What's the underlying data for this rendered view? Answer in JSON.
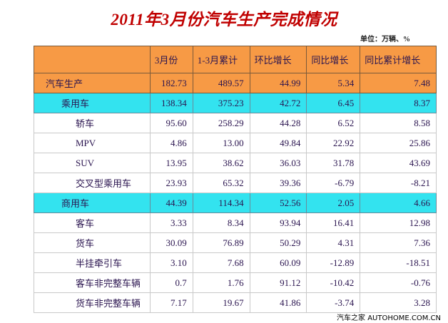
{
  "header": {
    "title": "2011年3月份汽车生产完成情况",
    "unit": "单位：万辆、%"
  },
  "table": {
    "columns": [
      "",
      "3月份",
      "1-3月累计",
      "环比增长",
      "同比增长",
      "同比累计增长"
    ],
    "rows": [
      [
        "汽车生产",
        "182.73",
        "489.57",
        "44.99",
        "5.34",
        "7.48"
      ],
      [
        "乘用车",
        "138.34",
        "375.23",
        "42.72",
        "6.45",
        "8.37"
      ],
      [
        "轿车",
        "95.60",
        "258.29",
        "44.28",
        "6.52",
        "8.58"
      ],
      [
        "MPV",
        "4.86",
        "13.00",
        "49.84",
        "22.92",
        "25.86"
      ],
      [
        "SUV",
        "13.95",
        "38.62",
        "36.03",
        "31.78",
        "43.69"
      ],
      [
        "交叉型乘用车",
        "23.93",
        "65.32",
        "39.36",
        "-6.79",
        "-8.21"
      ],
      [
        "商用车",
        "44.39",
        "114.34",
        "52.56",
        "2.05",
        "4.66"
      ],
      [
        "客车",
        "3.33",
        "8.34",
        "93.94",
        "16.41",
        "12.98"
      ],
      [
        "货车",
        "30.09",
        "76.89",
        "50.29",
        "4.31",
        "7.36"
      ],
      [
        "半挂牵引车",
        "3.10",
        "7.68",
        "60.09",
        "-12.89",
        "-18.51"
      ],
      [
        "客车非完整车辆",
        "0.7",
        "1.76",
        "91.12",
        "-10.42",
        "-0.76"
      ],
      [
        "货车非完整车辆",
        "7.17",
        "19.67",
        "41.86",
        "-3.74",
        "3.28"
      ]
    ]
  },
  "footer": "汽车之家 AUTOHOME.COM.CN"
}
